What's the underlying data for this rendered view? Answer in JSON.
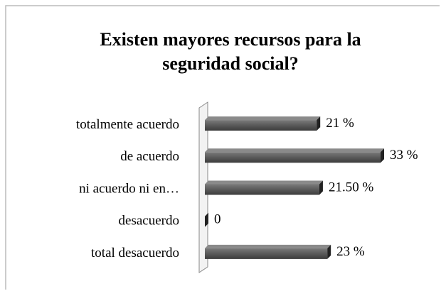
{
  "chart_data": {
    "type": "bar",
    "orientation": "horizontal",
    "title": "Existen mayores recursos para la seguridad social?",
    "categories": [
      "totalmente acuerdo",
      "de acuerdo",
      "ni acuerdo ni en…",
      "desacuerdo",
      "total desacuerdo"
    ],
    "values": [
      21,
      33,
      21.5,
      0,
      23
    ],
    "value_labels": [
      "21 %",
      "33 %",
      "21.50 %",
      "0",
      "23 %"
    ],
    "color": "#5a5a5a",
    "xlim": [
      0,
      35
    ]
  }
}
